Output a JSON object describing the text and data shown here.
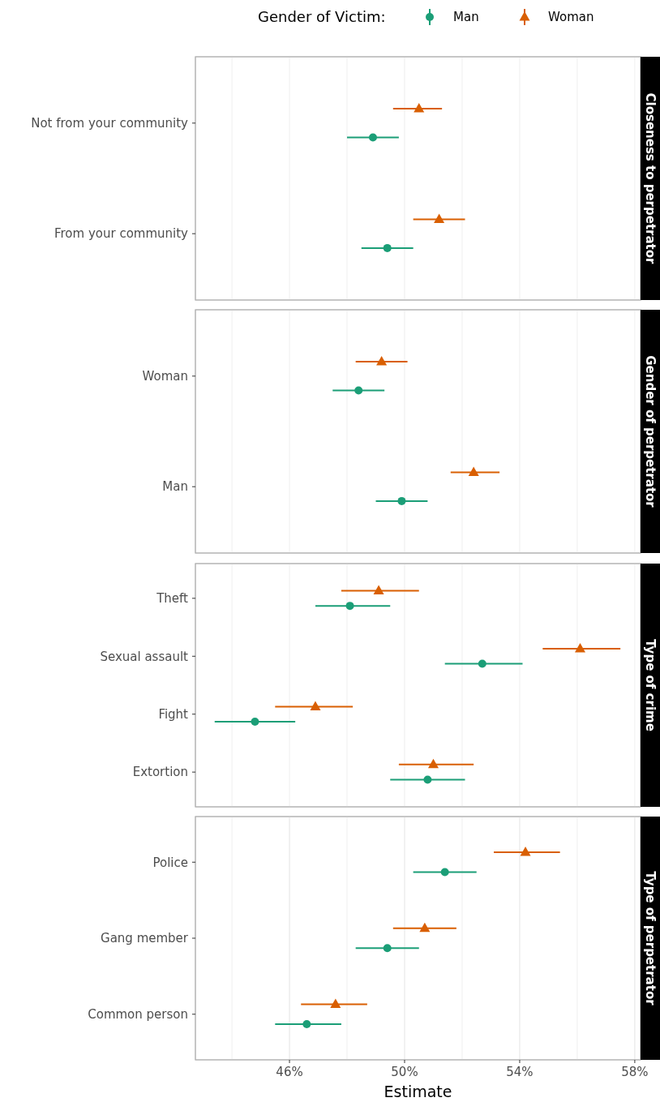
{
  "chart_data": [
    {
      "type": "scatter",
      "orientation": "horizontal",
      "title": "Closeness to perpetrator",
      "legend_title": "Gender of Victim:",
      "legend": "top",
      "grid": "x",
      "tick_labels": "y",
      "categories": [
        "Not from your community",
        "From your community"
      ],
      "xlim": [
        42.73,
        58.2
      ],
      "xticks": [
        {
          "value": 44,
          "label": null
        },
        {
          "value": 46,
          "label": null
        },
        {
          "value": 48,
          "label": null
        },
        {
          "value": 50,
          "label": null
        },
        {
          "value": 52,
          "label": null
        },
        {
          "value": 54,
          "label": null
        },
        {
          "value": 56,
          "label": null
        },
        {
          "value": 58,
          "label": null
        }
      ],
      "series": [
        {
          "name": "Man",
          "color": "#1b9e77",
          "marker": "circle",
          "values": [
            48.9,
            49.4
          ],
          "errors": [
            [
              48.0,
              49.8
            ],
            [
              48.5,
              50.3
            ]
          ]
        },
        {
          "name": "Woman",
          "color": "#d95f02",
          "marker": "triangle",
          "values": [
            50.5,
            51.2
          ],
          "errors": [
            [
              49.6,
              51.3
            ],
            [
              50.3,
              52.1
            ]
          ]
        }
      ]
    },
    {
      "type": "scatter",
      "orientation": "horizontal",
      "title": "Gender of perpetrator",
      "grid": "x",
      "tick_labels": "y",
      "categories": [
        "Woman",
        "Man"
      ],
      "xlim": [
        42.73,
        58.2
      ],
      "xticks": [
        {
          "value": 44,
          "label": null
        },
        {
          "value": 46,
          "label": null
        },
        {
          "value": 48,
          "label": null
        },
        {
          "value": 50,
          "label": null
        },
        {
          "value": 52,
          "label": null
        },
        {
          "value": 54,
          "label": null
        },
        {
          "value": 56,
          "label": null
        },
        {
          "value": 58,
          "label": null
        }
      ],
      "series": [
        {
          "color": "#1b9e77",
          "marker": "circle",
          "values": [
            48.4,
            49.9
          ],
          "errors": [
            [
              47.5,
              49.3
            ],
            [
              49.0,
              50.8
            ]
          ]
        },
        {
          "color": "#d95f02",
          "marker": "triangle",
          "values": [
            49.2,
            52.4
          ],
          "errors": [
            [
              48.3,
              50.1
            ],
            [
              51.6,
              53.3
            ]
          ]
        }
      ]
    },
    {
      "type": "scatter",
      "orientation": "horizontal",
      "title": "Type of crime",
      "grid": "x",
      "tick_labels": "y",
      "categories": [
        "Theft",
        "Sexual assault",
        "Fight",
        "Extortion"
      ],
      "xlim": [
        42.73,
        58.2
      ],
      "xticks": [
        {
          "value": 44,
          "label": null
        },
        {
          "value": 46,
          "label": null
        },
        {
          "value": 48,
          "label": null
        },
        {
          "value": 50,
          "label": null
        },
        {
          "value": 52,
          "label": null
        },
        {
          "value": 54,
          "label": null
        },
        {
          "value": 56,
          "label": null
        },
        {
          "value": 58,
          "label": null
        }
      ],
      "series": [
        {
          "color": "#1b9e77",
          "marker": "circle",
          "values": [
            48.1,
            52.7,
            44.8,
            50.8
          ],
          "errors": [
            [
              46.9,
              49.5
            ],
            [
              51.4,
              54.1
            ],
            [
              43.4,
              46.2
            ],
            [
              49.5,
              52.1
            ]
          ]
        },
        {
          "color": "#d95f02",
          "marker": "triangle",
          "values": [
            49.1,
            56.1,
            46.9,
            51.0
          ],
          "errors": [
            [
              47.8,
              50.5
            ],
            [
              54.8,
              57.5
            ],
            [
              45.5,
              48.2
            ],
            [
              49.8,
              52.4
            ]
          ]
        }
      ]
    },
    {
      "type": "scatter",
      "orientation": "horizontal",
      "title": "Type of perpetrator",
      "grid": "x",
      "xlabel": "Estimate",
      "categories": [
        "Police",
        "Gang member",
        "Common person"
      ],
      "xlim": [
        42.73,
        58.2
      ],
      "xticks": [
        {
          "value": 44,
          "label": null
        },
        {
          "value": 46,
          "label": "46%"
        },
        {
          "value": 48,
          "label": null
        },
        {
          "value": 50,
          "label": "50%"
        },
        {
          "value": 52,
          "label": null
        },
        {
          "value": 54,
          "label": "54%"
        },
        {
          "value": 56,
          "label": null
        },
        {
          "value": 58,
          "label": "58%"
        }
      ],
      "series": [
        {
          "color": "#1b9e77",
          "marker": "circle",
          "values": [
            51.4,
            49.4,
            46.6
          ],
          "errors": [
            [
              50.3,
              52.5
            ],
            [
              48.3,
              50.5
            ],
            [
              45.5,
              47.8
            ]
          ]
        },
        {
          "color": "#d95f02",
          "marker": "triangle",
          "values": [
            54.2,
            50.7,
            47.6
          ],
          "errors": [
            [
              53.1,
              55.4
            ],
            [
              49.6,
              51.8
            ],
            [
              46.4,
              48.7
            ]
          ]
        }
      ]
    }
  ]
}
